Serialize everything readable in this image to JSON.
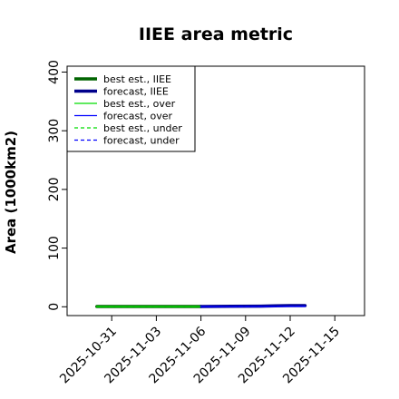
{
  "chart_data": {
    "type": "line",
    "title": "IIEE area metric",
    "xlabel": "",
    "ylabel": "Area (1000km2)",
    "x_ticks": [
      "2025-10-31",
      "2025-11-03",
      "2025-11-06",
      "2025-11-09",
      "2025-11-12",
      "2025-11-15"
    ],
    "highlight_tick": "2025-11-06",
    "highlight_color": "#228b22",
    "xlim": [
      "2025-10-28",
      "2025-11-17"
    ],
    "ylim": [
      -15,
      410
    ],
    "y_ticks": [
      0,
      100,
      200,
      300,
      400
    ],
    "grid": false,
    "legend_position": "top-left",
    "series": [
      {
        "name": "best est., IIEE",
        "color": "#006400",
        "style": "solid",
        "weight": "thick",
        "points": [
          [
            "2025-10-30",
            0.5
          ],
          [
            "2025-10-31",
            0.5
          ],
          [
            "2025-11-03",
            0.5
          ],
          [
            "2025-11-06",
            0.5
          ]
        ]
      },
      {
        "name": "forecast, IIEE",
        "color": "#00008b",
        "style": "solid",
        "weight": "thick",
        "points": [
          [
            "2025-11-06",
            0.5
          ],
          [
            "2025-11-07",
            0.6
          ],
          [
            "2025-11-10",
            1.0
          ],
          [
            "2025-11-11",
            1.5
          ],
          [
            "2025-11-12",
            2.0
          ],
          [
            "2025-11-13",
            2.0
          ]
        ]
      },
      {
        "name": "best est., over",
        "color": "#00dd00",
        "style": "solid",
        "weight": "thin",
        "points": [
          [
            "2025-10-30",
            0.2
          ],
          [
            "2025-11-03",
            0.2
          ],
          [
            "2025-11-06",
            0.2
          ]
        ]
      },
      {
        "name": "forecast, over",
        "color": "#0000ff",
        "style": "solid",
        "weight": "thin",
        "points": [
          [
            "2025-11-06",
            0.2
          ],
          [
            "2025-11-10",
            0.5
          ],
          [
            "2025-11-13",
            1.0
          ]
        ]
      },
      {
        "name": "best est., under",
        "color": "#00dd00",
        "style": "dashed",
        "weight": "thin",
        "points": [
          [
            "2025-10-30",
            0.2
          ],
          [
            "2025-11-03",
            0.2
          ],
          [
            "2025-11-06",
            0.2
          ]
        ]
      },
      {
        "name": "forecast, under",
        "color": "#0000ff",
        "style": "dashed",
        "weight": "thin",
        "points": [
          [
            "2025-11-06",
            0.2
          ],
          [
            "2025-11-10",
            0.5
          ],
          [
            "2025-11-13",
            0.8
          ]
        ]
      }
    ]
  }
}
